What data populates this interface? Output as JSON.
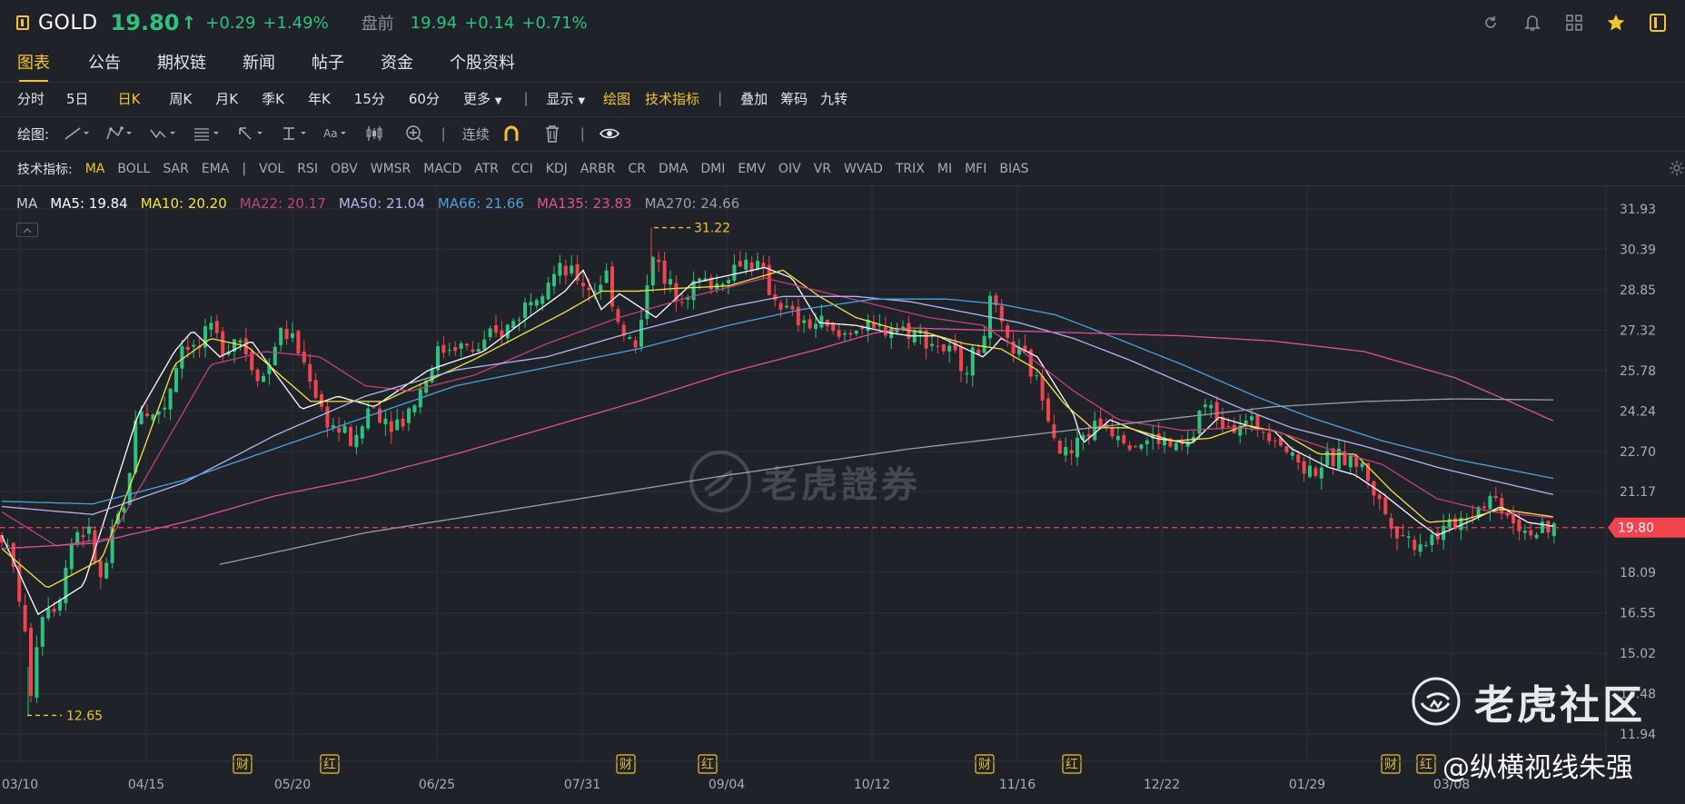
{
  "header": {
    "symbol": "GOLD",
    "price": "19.80",
    "price_arrow": "↑",
    "change": "+0.29",
    "change_pct": "+1.49%",
    "premarket_label": "盘前",
    "premarket_price": "19.94",
    "premarket_change": "+0.14",
    "premarket_change_pct": "+0.71%",
    "colors": {
      "up": "#2ec27e",
      "accent": "#f4c430",
      "down": "#f0444f"
    }
  },
  "tabs": [
    "图表",
    "公告",
    "期权链",
    "新闻",
    "帖子",
    "资金",
    "个股资料"
  ],
  "periods": {
    "items": [
      "分时",
      "5日",
      "日K",
      "周K",
      "月K",
      "季K",
      "年K",
      "15分",
      "60分"
    ],
    "active": "日K",
    "more": "更多",
    "display": "显示",
    "draw": "绘图",
    "tech": "技术指标",
    "overlay": [
      "叠加",
      "筹码",
      "九转"
    ]
  },
  "draw_tools": {
    "label": "绘图:",
    "continuous": "连续",
    "font_tool": "Aa"
  },
  "indicators": {
    "label": "技术指标:",
    "main": [
      "MA",
      "BOLL",
      "SAR",
      "EMA"
    ],
    "sub": [
      "VOL",
      "RSI",
      "OBV",
      "WMSR",
      "MACD",
      "ATR",
      "CCI",
      "KDJ",
      "ARBR",
      "CR",
      "DMA",
      "DMI",
      "EMV",
      "OIV",
      "VR",
      "WVAD",
      "TRIX",
      "MI",
      "MFI",
      "BIAS"
    ],
    "active": "MA"
  },
  "ma_legend": [
    {
      "text": "MA",
      "color": "#c8ccd4"
    },
    {
      "text": "MA5: 19.84",
      "color": "#ffffff"
    },
    {
      "text": "MA10: 20.20",
      "color": "#f5e43b"
    },
    {
      "text": "MA22: 20.17",
      "color": "#c2407e"
    },
    {
      "text": "MA50: 21.04",
      "color": "#b6b4f0"
    },
    {
      "text": "MA66: 21.66",
      "color": "#4aa3e0"
    },
    {
      "text": "MA135: 23.83",
      "color": "#e0509a"
    },
    {
      "text": "MA270: 24.66",
      "color": "#9a9ea6"
    }
  ],
  "chart_data": {
    "type": "candlestick",
    "y_ticks": [
      "31.93",
      "30.39",
      "28.85",
      "27.32",
      "25.78",
      "24.24",
      "22.70",
      "21.17",
      "19.80",
      "18.09",
      "16.55",
      "15.02",
      "13.48",
      "11.94"
    ],
    "ylim": [
      11.94,
      31.93
    ],
    "x_ticks": [
      "03/10",
      "04/15",
      "05/20",
      "06/25",
      "07/31",
      "09/04",
      "10/12",
      "11/16",
      "12/22",
      "01/29",
      "03/08"
    ],
    "current_price": "19.80",
    "high_label": "31.22",
    "low_label": "12.65",
    "event_badges": [
      {
        "label": "财",
        "date": "05/01"
      },
      {
        "label": "红",
        "date": "05/22"
      },
      {
        "label": "财",
        "date": "07/31"
      },
      {
        "label": "红",
        "date": "08/20"
      },
      {
        "label": "财",
        "date": "11/06"
      },
      {
        "label": "红",
        "date": "11/20"
      },
      {
        "label": "财",
        "date": "02/20"
      },
      {
        "label": "红",
        "date": "02/27"
      }
    ],
    "ma_anchors": {
      "MA5": [
        [
          0,
          19.5
        ],
        [
          40,
          16.5
        ],
        [
          90,
          17.6
        ],
        [
          150,
          24.1
        ],
        [
          190,
          26.5
        ],
        [
          210,
          27.3
        ],
        [
          240,
          26.3
        ],
        [
          275,
          26.9
        ],
        [
          330,
          24.3
        ],
        [
          370,
          24.8
        ],
        [
          410,
          24.4
        ],
        [
          470,
          25.8
        ],
        [
          530,
          26.5
        ],
        [
          580,
          27.8
        ],
        [
          620,
          28.8
        ],
        [
          640,
          29.6
        ],
        [
          660,
          28.1
        ],
        [
          680,
          28.7
        ],
        [
          720,
          27.8
        ],
        [
          760,
          29.1
        ],
        [
          800,
          29.4
        ],
        [
          840,
          29.7
        ],
        [
          870,
          29.3
        ],
        [
          900,
          27.6
        ],
        [
          940,
          27.5
        ],
        [
          980,
          27.2
        ],
        [
          1000,
          27.1
        ],
        [
          1030,
          27.1
        ],
        [
          1080,
          26.3
        ],
        [
          1090,
          26.6
        ],
        [
          1100,
          27.0
        ],
        [
          1140,
          26.3
        ],
        [
          1180,
          24.1
        ],
        [
          1190,
          23.0
        ],
        [
          1220,
          23.9
        ],
        [
          1270,
          23.2
        ],
        [
          1310,
          23.0
        ],
        [
          1340,
          24.0
        ],
        [
          1380,
          23.6
        ],
        [
          1400,
          23.5
        ],
        [
          1420,
          22.8
        ],
        [
          1460,
          22.1
        ],
        [
          1490,
          21.8
        ],
        [
          1520,
          21.1
        ],
        [
          1560,
          20.0
        ],
        [
          1580,
          19.5
        ],
        [
          1620,
          20.1
        ],
        [
          1650,
          20.6
        ],
        [
          1680,
          20.0
        ],
        [
          1710,
          19.84
        ]
      ],
      "MA10": [
        [
          0,
          19.0
        ],
        [
          50,
          17.5
        ],
        [
          110,
          18.6
        ],
        [
          150,
          22.2
        ],
        [
          190,
          26.0
        ],
        [
          230,
          27.0
        ],
        [
          270,
          26.7
        ],
        [
          300,
          25.8
        ],
        [
          340,
          24.6
        ],
        [
          380,
          24.6
        ],
        [
          420,
          24.6
        ],
        [
          470,
          25.4
        ],
        [
          520,
          26.2
        ],
        [
          570,
          27.1
        ],
        [
          620,
          28.0
        ],
        [
          660,
          28.8
        ],
        [
          700,
          28.8
        ],
        [
          740,
          28.9
        ],
        [
          800,
          29.0
        ],
        [
          860,
          29.6
        ],
        [
          900,
          28.6
        ],
        [
          940,
          27.8
        ],
        [
          980,
          27.4
        ],
        [
          1020,
          27.2
        ],
        [
          1060,
          26.8
        ],
        [
          1100,
          26.6
        ],
        [
          1140,
          25.8
        ],
        [
          1170,
          24.5
        ],
        [
          1200,
          23.6
        ],
        [
          1240,
          23.6
        ],
        [
          1290,
          23.1
        ],
        [
          1330,
          23.2
        ],
        [
          1370,
          23.7
        ],
        [
          1410,
          23.4
        ],
        [
          1450,
          22.6
        ],
        [
          1490,
          22.6
        ],
        [
          1530,
          21.2
        ],
        [
          1570,
          20.0
        ],
        [
          1610,
          20.1
        ],
        [
          1650,
          20.5
        ],
        [
          1690,
          20.3
        ],
        [
          1710,
          20.2
        ]
      ],
      "MA22": [
        [
          0,
          20.4
        ],
        [
          60,
          19.1
        ],
        [
          120,
          19.4
        ],
        [
          180,
          23.0
        ],
        [
          230,
          26.0
        ],
        [
          290,
          26.5
        ],
        [
          350,
          26.3
        ],
        [
          400,
          25.2
        ],
        [
          450,
          25.0
        ],
        [
          520,
          25.6
        ],
        [
          600,
          26.8
        ],
        [
          680,
          27.8
        ],
        [
          760,
          28.6
        ],
        [
          840,
          29.3
        ],
        [
          900,
          28.8
        ],
        [
          960,
          28.3
        ],
        [
          1020,
          27.8
        ],
        [
          1080,
          27.5
        ],
        [
          1120,
          26.6
        ],
        [
          1180,
          25.0
        ],
        [
          1230,
          23.9
        ],
        [
          1300,
          23.5
        ],
        [
          1360,
          23.6
        ],
        [
          1400,
          23.5
        ],
        [
          1460,
          22.8
        ],
        [
          1520,
          22.2
        ],
        [
          1580,
          20.9
        ],
        [
          1640,
          20.4
        ],
        [
          1710,
          20.17
        ]
      ],
      "MA50": [
        [
          0,
          20.6
        ],
        [
          100,
          20.3
        ],
        [
          200,
          21.5
        ],
        [
          300,
          23.3
        ],
        [
          400,
          24.8
        ],
        [
          500,
          25.8
        ],
        [
          600,
          26.3
        ],
        [
          700,
          27.3
        ],
        [
          800,
          28.2
        ],
        [
          860,
          28.6
        ],
        [
          940,
          28.6
        ],
        [
          1000,
          28.4
        ],
        [
          1060,
          28.0
        ],
        [
          1120,
          27.6
        ],
        [
          1180,
          27.0
        ],
        [
          1240,
          26.2
        ],
        [
          1300,
          25.3
        ],
        [
          1360,
          24.4
        ],
        [
          1420,
          23.6
        ],
        [
          1500,
          22.9
        ],
        [
          1580,
          22.1
        ],
        [
          1640,
          21.6
        ],
        [
          1710,
          21.04
        ]
      ],
      "MA66": [
        [
          0,
          20.8
        ],
        [
          100,
          20.7
        ],
        [
          200,
          21.6
        ],
        [
          300,
          22.8
        ],
        [
          400,
          24.0
        ],
        [
          500,
          25.2
        ],
        [
          600,
          25.9
        ],
        [
          700,
          26.6
        ],
        [
          800,
          27.5
        ],
        [
          880,
          28.1
        ],
        [
          960,
          28.5
        ],
        [
          1040,
          28.5
        ],
        [
          1100,
          28.3
        ],
        [
          1160,
          27.9
        ],
        [
          1220,
          27.1
        ],
        [
          1300,
          26.0
        ],
        [
          1380,
          24.8
        ],
        [
          1440,
          24.0
        ],
        [
          1520,
          23.1
        ],
        [
          1600,
          22.4
        ],
        [
          1660,
          22.0
        ],
        [
          1710,
          21.66
        ]
      ],
      "MA135": [
        [
          0,
          19.0
        ],
        [
          100,
          19.2
        ],
        [
          200,
          20.0
        ],
        [
          300,
          21.0
        ],
        [
          400,
          21.7
        ],
        [
          500,
          22.6
        ],
        [
          600,
          23.6
        ],
        [
          700,
          24.6
        ],
        [
          800,
          25.7
        ],
        [
          900,
          26.6
        ],
        [
          960,
          27.2
        ],
        [
          1000,
          27.4
        ],
        [
          1100,
          27.3
        ],
        [
          1200,
          27.2
        ],
        [
          1300,
          27.1
        ],
        [
          1400,
          26.9
        ],
        [
          1500,
          26.5
        ],
        [
          1600,
          25.5
        ],
        [
          1660,
          24.6
        ],
        [
          1710,
          23.83
        ]
      ],
      "MA270": [
        [
          240,
          18.4
        ],
        [
          400,
          19.6
        ],
        [
          600,
          20.7
        ],
        [
          800,
          21.8
        ],
        [
          1000,
          22.8
        ],
        [
          1200,
          23.6
        ],
        [
          1400,
          24.4
        ],
        [
          1500,
          24.6
        ],
        [
          1600,
          24.7
        ],
        [
          1710,
          24.66
        ]
      ]
    },
    "price_anchors": [
      [
        0,
        19.5
      ],
      [
        15,
        18.0
      ],
      [
        25,
        16.0
      ],
      [
        30,
        13.0
      ],
      [
        40,
        16.0
      ],
      [
        50,
        17.0
      ],
      [
        60,
        16.8
      ],
      [
        80,
        19.7
      ],
      [
        95,
        19.6
      ],
      [
        110,
        17.6
      ],
      [
        125,
        20.0
      ],
      [
        135,
        20.5
      ],
      [
        150,
        24.5
      ],
      [
        165,
        24.0
      ],
      [
        180,
        24.5
      ],
      [
        200,
        27.0
      ],
      [
        215,
        26.5
      ],
      [
        230,
        27.3
      ],
      [
        245,
        26.7
      ],
      [
        260,
        27.2
      ],
      [
        275,
        26.0
      ],
      [
        290,
        25.5
      ],
      [
        305,
        27.3
      ],
      [
        320,
        27.0
      ],
      [
        340,
        25.5
      ],
      [
        355,
        24.0
      ],
      [
        370,
        23.5
      ],
      [
        390,
        23.0
      ],
      [
        405,
        24.5
      ],
      [
        420,
        24.0
      ],
      [
        440,
        23.8
      ],
      [
        460,
        25.0
      ],
      [
        480,
        26.5
      ],
      [
        500,
        26.8
      ],
      [
        520,
        26.5
      ],
      [
        540,
        27.0
      ],
      [
        560,
        27.5
      ],
      [
        580,
        28.5
      ],
      [
        600,
        29.3
      ],
      [
        615,
        29.5
      ],
      [
        630,
        29.4
      ],
      [
        650,
        28.8
      ],
      [
        665,
        29.5
      ],
      [
        680,
        27.5
      ],
      [
        700,
        26.5
      ],
      [
        715,
        30.5
      ],
      [
        730,
        29.0
      ],
      [
        750,
        28.8
      ],
      [
        770,
        29.2
      ],
      [
        785,
        29.0
      ],
      [
        800,
        29.5
      ],
      [
        815,
        30.0
      ],
      [
        830,
        29.8
      ],
      [
        850,
        28.6
      ],
      [
        865,
        28.0
      ],
      [
        880,
        27.5
      ],
      [
        900,
        27.6
      ],
      [
        920,
        27.0
      ],
      [
        940,
        27.5
      ],
      [
        960,
        27.2
      ],
      [
        980,
        27.5
      ],
      [
        1000,
        27.3
      ],
      [
        1020,
        27.0
      ],
      [
        1040,
        26.5
      ],
      [
        1060,
        26.0
      ],
      [
        1075,
        26.5
      ],
      [
        1090,
        28.5
      ],
      [
        1100,
        27.2
      ],
      [
        1115,
        26.5
      ],
      [
        1130,
        26.0
      ],
      [
        1150,
        24.5
      ],
      [
        1165,
        22.8
      ],
      [
        1175,
        22.5
      ],
      [
        1190,
        23.3
      ],
      [
        1210,
        23.8
      ],
      [
        1230,
        23.5
      ],
      [
        1250,
        23.0
      ],
      [
        1270,
        23.2
      ],
      [
        1290,
        22.8
      ],
      [
        1310,
        23.0
      ],
      [
        1320,
        24.5
      ],
      [
        1340,
        24.0
      ],
      [
        1360,
        23.8
      ],
      [
        1380,
        23.7
      ],
      [
        1400,
        23.5
      ],
      [
        1420,
        22.5
      ],
      [
        1440,
        22.0
      ],
      [
        1460,
        22.3
      ],
      [
        1480,
        22.5
      ],
      [
        1500,
        22.0
      ],
      [
        1520,
        20.5
      ],
      [
        1540,
        19.6
      ],
      [
        1555,
        19.2
      ],
      [
        1570,
        19.4
      ],
      [
        1585,
        19.6
      ],
      [
        1600,
        20.0
      ],
      [
        1620,
        20.5
      ],
      [
        1640,
        21.0
      ],
      [
        1655,
        20.5
      ],
      [
        1670,
        19.9
      ],
      [
        1690,
        19.6
      ],
      [
        1700,
        19.5
      ],
      [
        1710,
        19.8
      ]
    ]
  },
  "watermark": "老虎證券",
  "brand": "老虎社区",
  "author": "@纵横视线朱强"
}
